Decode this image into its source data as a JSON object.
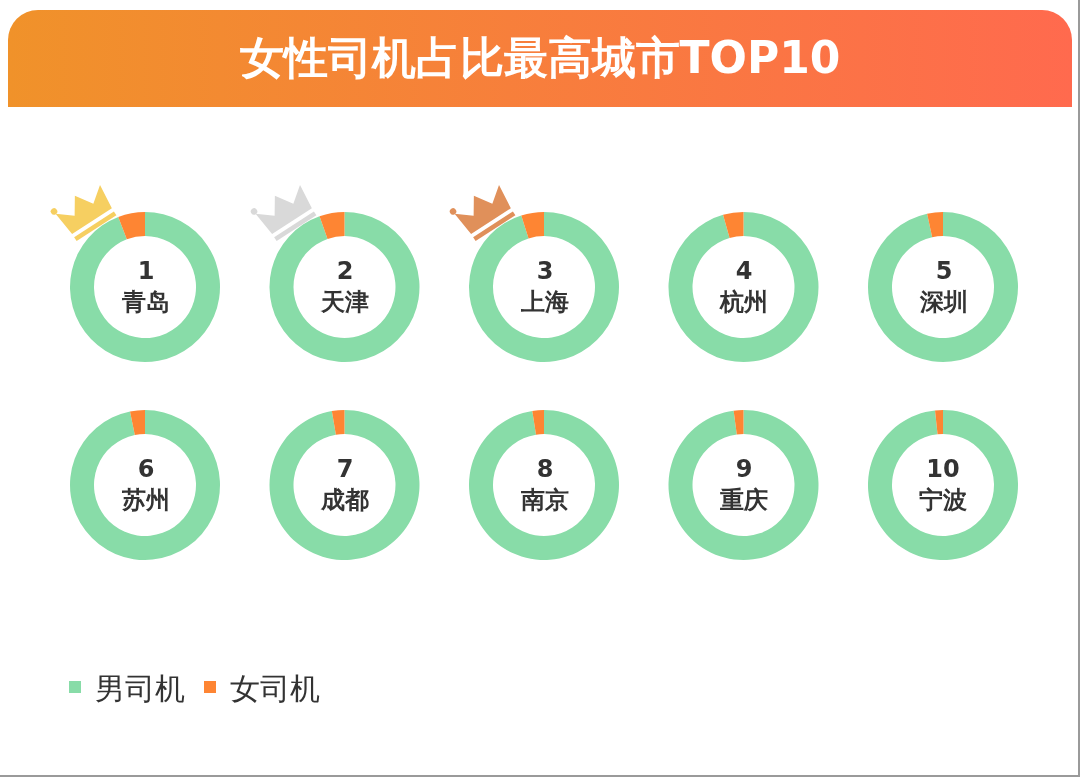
{
  "chart_data": {
    "type": "donut",
    "title": "女性司机占比最高城市TOP10",
    "categories": [
      "男司机",
      "女司机"
    ],
    "colors": [
      "#88dca8",
      "#fe8533"
    ],
    "series": [
      {
        "name": "1\n青岛",
        "values": [
          94.2,
          5.8
        ]
      },
      {
        "name": "2\n天津",
        "values": [
          94.6,
          5.4
        ]
      },
      {
        "name": "3\n上海",
        "values": [
          95.1,
          4.9
        ]
      },
      {
        "name": "4\n杭州",
        "values": [
          95.6,
          4.4
        ]
      },
      {
        "name": "5\n深圳",
        "values": [
          96.6,
          3.4
        ]
      },
      {
        "name": "6\n苏州",
        "values": [
          96.8,
          3.2
        ]
      },
      {
        "name": "7\n成都",
        "values": [
          97.3,
          2.7
        ]
      },
      {
        "name": "8\n南京",
        "values": [
          97.5,
          2.5
        ]
      },
      {
        "name": "9\n重庆",
        "values": [
          97.9,
          2.1
        ]
      },
      {
        "name": "10\n宁波",
        "values": [
          98.3,
          1.7
        ]
      }
    ],
    "legend": "bottom left"
  }
}
